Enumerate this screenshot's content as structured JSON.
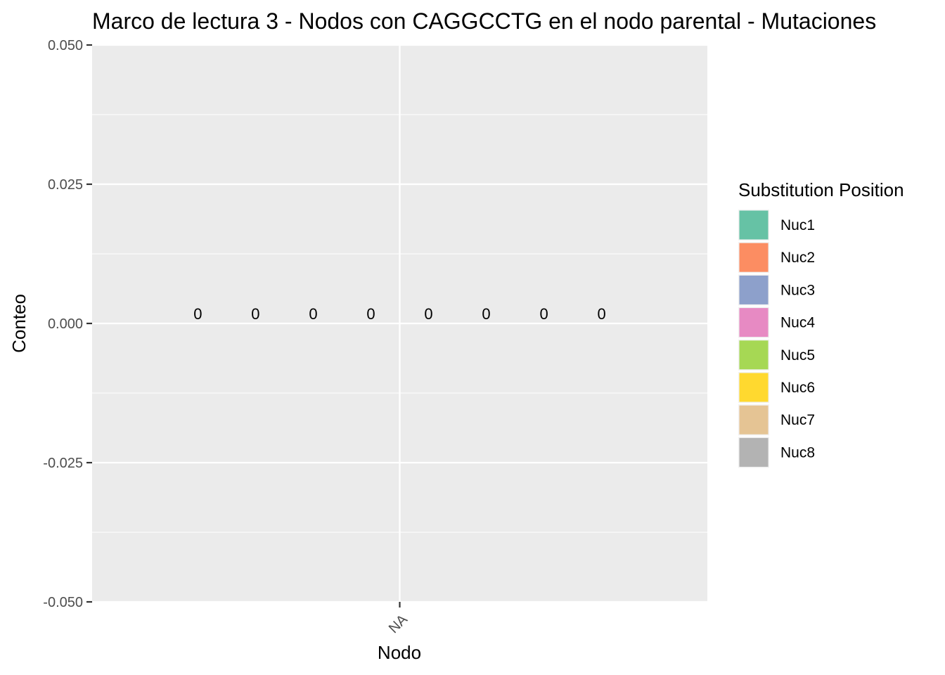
{
  "chart_data": {
    "type": "bar",
    "title": "Marco de lectura 3 - Nodos con CAGGCCTG en el nodo parental - Mutaciones",
    "xlabel": "Nodo",
    "ylabel": "Conteo",
    "categories": [
      "NA"
    ],
    "ylim": [
      -0.05,
      0.05
    ],
    "yticks": [
      0.05,
      0.025,
      0.0,
      -0.025,
      -0.05
    ],
    "ytick_labels": [
      "0.050",
      "0.025",
      "0.000",
      "-0.025",
      "-0.050"
    ],
    "grid": true,
    "legend": {
      "title": "Substitution Position",
      "placement": "right"
    },
    "series": [
      {
        "name": "Nuc1",
        "color": "#66C2A5",
        "values": [
          0
        ],
        "label": "0"
      },
      {
        "name": "Nuc2",
        "color": "#FC8D62",
        "values": [
          0
        ],
        "label": "0"
      },
      {
        "name": "Nuc3",
        "color": "#8DA0CB",
        "values": [
          0
        ],
        "label": "0"
      },
      {
        "name": "Nuc4",
        "color": "#E78AC3",
        "values": [
          0
        ],
        "label": "0"
      },
      {
        "name": "Nuc5",
        "color": "#A6D854",
        "values": [
          0
        ],
        "label": "0"
      },
      {
        "name": "Nuc6",
        "color": "#FFD92F",
        "values": [
          0
        ],
        "label": "0"
      },
      {
        "name": "Nuc7",
        "color": "#E5C494",
        "values": [
          0
        ],
        "label": "0"
      },
      {
        "name": "Nuc8",
        "color": "#B3B3B3",
        "values": [
          0
        ],
        "label": "0"
      }
    ]
  }
}
